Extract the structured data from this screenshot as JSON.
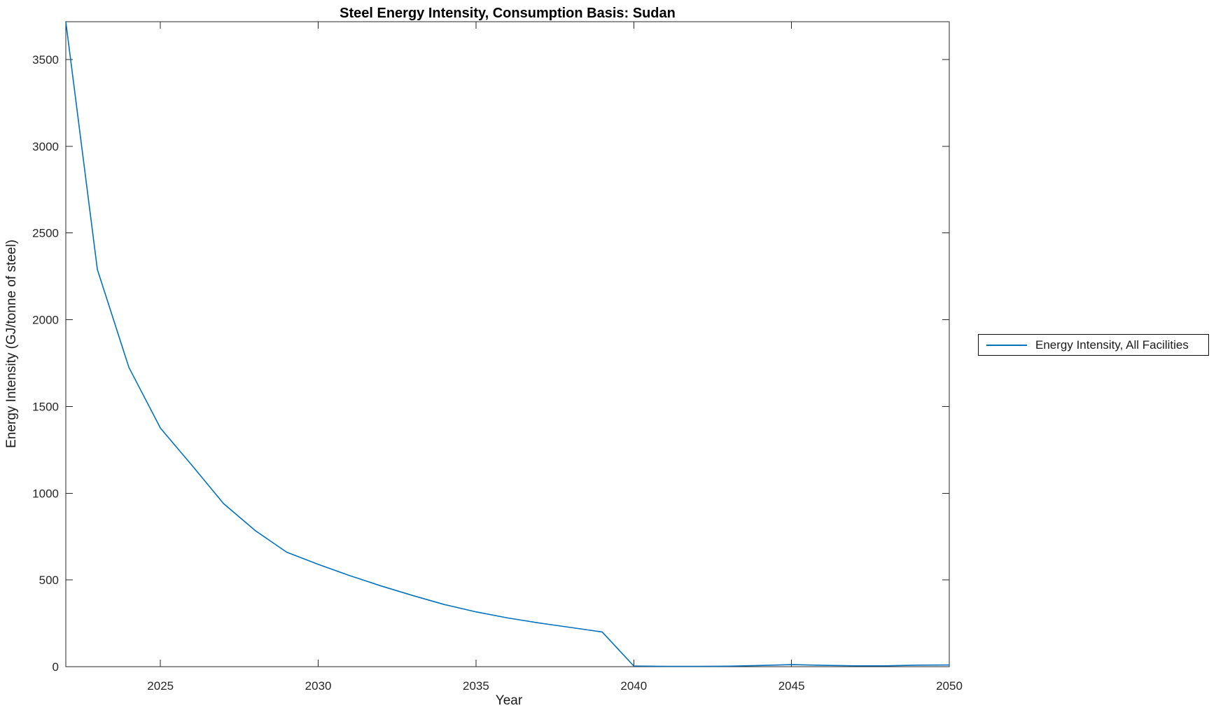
{
  "figure": {
    "title": "Steel Energy Intensity, Consumption Basis: Sudan",
    "xlabel": "Year",
    "ylabel": "Energy Intensity (GJ/tonne of steel)"
  },
  "legend": {
    "entries": [
      {
        "label": "Energy Intensity, All Facilities",
        "color": "#0072BD"
      }
    ]
  },
  "chart_data": {
    "type": "line",
    "title": "Steel Energy Intensity, Consumption Basis: Sudan",
    "xlabel": "Year",
    "ylabel": "Energy Intensity (GJ/tonne of steel)",
    "xlim": [
      2022,
      2050
    ],
    "ylim": [
      0,
      3718
    ],
    "xticks": [
      2025,
      2030,
      2035,
      2040,
      2045,
      2050
    ],
    "yticks": [
      0,
      500,
      1000,
      1500,
      2000,
      2500,
      3000,
      3500
    ],
    "grid": false,
    "legend_position": "right-outside",
    "series": [
      {
        "name": "Energy Intensity, All Facilities",
        "color": "#0072BD",
        "x": [
          2022,
          2023,
          2024,
          2025,
          2026,
          2027,
          2028,
          2029,
          2030,
          2031,
          2032,
          2033,
          2034,
          2035,
          2036,
          2037,
          2038,
          2039,
          2040,
          2041,
          2042,
          2043,
          2044,
          2045,
          2046,
          2047,
          2048,
          2049,
          2050
        ],
        "y": [
          3718,
          2290,
          1725,
          1375,
          1160,
          940,
          785,
          660,
          590,
          525,
          465,
          410,
          358,
          316,
          281,
          252,
          226,
          200,
          4,
          2,
          2,
          3,
          7,
          12,
          8,
          5,
          5,
          9,
          10
        ]
      }
    ]
  }
}
